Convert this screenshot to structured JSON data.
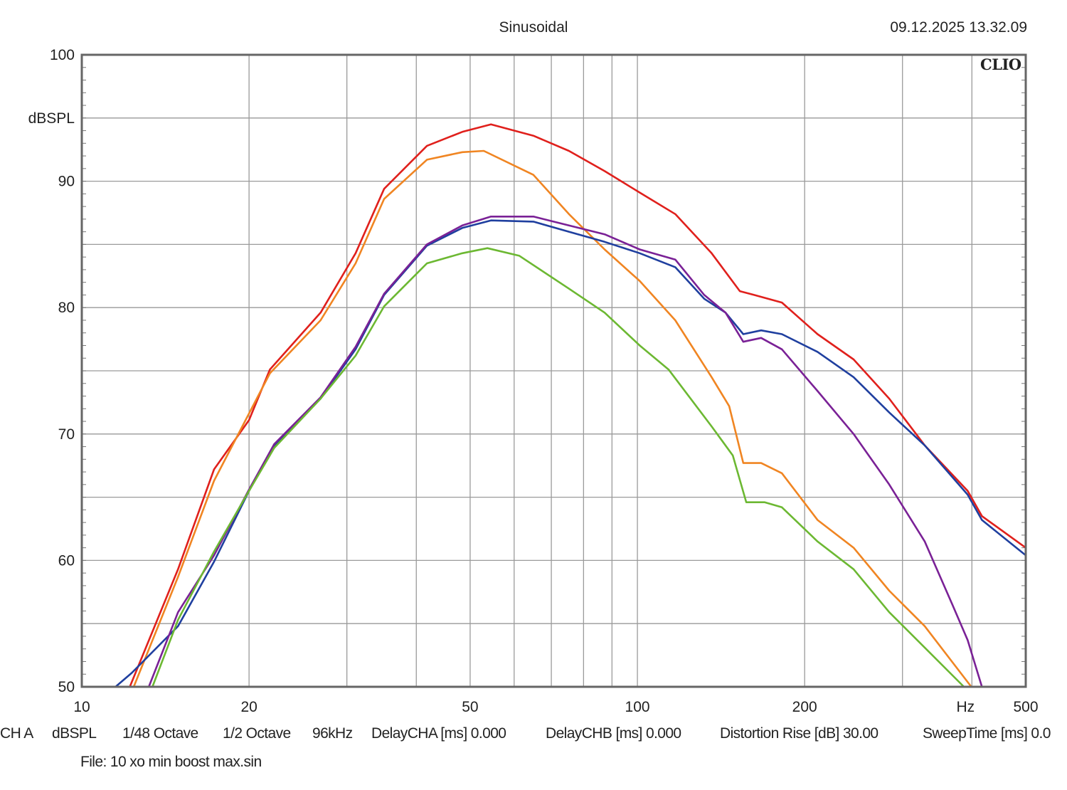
{
  "header": {
    "title": "Sinusoidal",
    "timestamp": "09.12.2025 13.32.09",
    "logo": "CLIO"
  },
  "footer": {
    "settings": [
      "CH A",
      "dBSPL",
      "1/48 Octave",
      "1/2 Octave",
      "96kHz",
      "DelayCHA [ms] 0.000",
      "DelayCHB [ms] 0.000",
      "Distortion Rise [dB] 30.00",
      "SweepTime [ms] 0.0"
    ],
    "file": "File: 10 xo min boost max.sin"
  },
  "chart_data": {
    "type": "line",
    "title": "Sinusoidal",
    "xlabel": "Hz",
    "ylabel": "dBSPL",
    "xscale": "log",
    "xlim": [
      10,
      500
    ],
    "ylim": [
      50,
      100
    ],
    "xticks": [
      10,
      20,
      50,
      100,
      200,
      500
    ],
    "yticks": [
      50,
      60,
      70,
      80,
      90,
      100
    ],
    "grid": true,
    "series": [
      {
        "color": "#e0201c",
        "points": [
          [
            12.2,
            50
          ],
          [
            14.9,
            59.3
          ],
          [
            17.3,
            67.2
          ],
          [
            20.0,
            71.1
          ],
          [
            21.8,
            75.1
          ],
          [
            26.9,
            79.6
          ],
          [
            31.1,
            84.3
          ],
          [
            35.0,
            89.4
          ],
          [
            41.8,
            92.8
          ],
          [
            48.4,
            93.9
          ],
          [
            54.5,
            94.5
          ],
          [
            65,
            93.6
          ],
          [
            75.3,
            92.4
          ],
          [
            87.3,
            90.8
          ],
          [
            101,
            89.1
          ],
          [
            117,
            87.4
          ],
          [
            136,
            84.3
          ],
          [
            152.9,
            81.3
          ],
          [
            162.2,
            81.0
          ],
          [
            182,
            80.4
          ],
          [
            211,
            77.9
          ],
          [
            245,
            75.9
          ],
          [
            284,
            72.8
          ],
          [
            329,
            69.1
          ],
          [
            393,
            65.5
          ],
          [
            417,
            63.5
          ],
          [
            500,
            61.0
          ]
        ]
      },
      {
        "color": "#f08522",
        "points": [
          [
            12.4,
            50
          ],
          [
            14.9,
            58.7
          ],
          [
            17.3,
            66.3
          ],
          [
            21.8,
            74.8
          ],
          [
            26.9,
            79.0
          ],
          [
            31.1,
            83.5
          ],
          [
            35.0,
            88.6
          ],
          [
            41.8,
            91.7
          ],
          [
            48.4,
            92.3
          ],
          [
            52.9,
            92.4
          ],
          [
            65,
            90.5
          ],
          [
            75.3,
            87.4
          ],
          [
            87.3,
            84.6
          ],
          [
            101,
            82.1
          ],
          [
            117,
            79.0
          ],
          [
            136,
            74.5
          ],
          [
            146.3,
            72.2
          ],
          [
            155.1,
            67.7
          ],
          [
            167.0,
            67.7
          ],
          [
            182,
            66.9
          ],
          [
            211,
            63.2
          ],
          [
            245,
            61.0
          ],
          [
            284,
            57.6
          ],
          [
            329,
            54.8
          ],
          [
            399,
            50
          ]
        ]
      },
      {
        "color": "#1f3f9f",
        "points": [
          [
            11.5,
            50
          ],
          [
            12.3,
            51.1
          ],
          [
            14.9,
            54.8
          ],
          [
            17.3,
            59.9
          ],
          [
            20.0,
            65.5
          ],
          [
            22.2,
            69.1
          ],
          [
            26.9,
            72.8
          ],
          [
            31.1,
            76.7
          ],
          [
            35.0,
            81.0
          ],
          [
            41.8,
            84.9
          ],
          [
            48.4,
            86.3
          ],
          [
            54.5,
            86.9
          ],
          [
            65,
            86.8
          ],
          [
            75.3,
            86.0
          ],
          [
            87.3,
            85.2
          ],
          [
            101,
            84.3
          ],
          [
            117,
            83.2
          ],
          [
            131.9,
            80.7
          ],
          [
            144.1,
            79.6
          ],
          [
            155.1,
            77.9
          ],
          [
            167.0,
            78.2
          ],
          [
            182,
            77.9
          ],
          [
            211,
            76.5
          ],
          [
            245,
            74.5
          ],
          [
            284,
            71.7
          ],
          [
            329,
            69.1
          ],
          [
            393,
            65.2
          ],
          [
            417,
            63.2
          ],
          [
            500,
            60.4
          ]
        ]
      },
      {
        "color": "#7a2196",
        "points": [
          [
            13.2,
            50
          ],
          [
            14.9,
            55.9
          ],
          [
            17.3,
            60.4
          ],
          [
            20.0,
            65.6
          ],
          [
            22.2,
            69.2
          ],
          [
            26.9,
            72.9
          ],
          [
            31.1,
            76.9
          ],
          [
            35.0,
            81.1
          ],
          [
            41.8,
            85.0
          ],
          [
            48.4,
            86.5
          ],
          [
            54.5,
            87.2
          ],
          [
            65,
            87.2
          ],
          [
            75.3,
            86.5
          ],
          [
            87.3,
            85.8
          ],
          [
            101,
            84.6
          ],
          [
            117,
            83.8
          ],
          [
            131.9,
            81.0
          ],
          [
            144.1,
            79.6
          ],
          [
            155.1,
            77.3
          ],
          [
            167.0,
            77.6
          ],
          [
            182,
            76.7
          ],
          [
            211,
            73.4
          ],
          [
            245,
            70.0
          ],
          [
            284,
            66.0
          ],
          [
            329,
            61.5
          ],
          [
            369,
            56.5
          ],
          [
            393,
            53.7
          ],
          [
            417,
            50
          ]
        ]
      },
      {
        "color": "#6cb832",
        "points": [
          [
            13.4,
            50
          ],
          [
            14.9,
            55.3
          ],
          [
            17.3,
            60.7
          ],
          [
            20.0,
            65.5
          ],
          [
            22.2,
            68.9
          ],
          [
            26.9,
            72.8
          ],
          [
            31.1,
            76.2
          ],
          [
            35.0,
            80.1
          ],
          [
            41.8,
            83.5
          ],
          [
            48.4,
            84.3
          ],
          [
            53.7,
            84.7
          ],
          [
            61.3,
            84.1
          ],
          [
            75.3,
            81.5
          ],
          [
            87.3,
            79.6
          ],
          [
            101,
            77.0
          ],
          [
            113.8,
            75.1
          ],
          [
            136,
            70.6
          ],
          [
            148.5,
            68.3
          ],
          [
            157,
            64.6
          ],
          [
            169.5,
            64.6
          ],
          [
            182,
            64.2
          ],
          [
            211,
            61.5
          ],
          [
            245,
            59.3
          ],
          [
            284,
            55.9
          ],
          [
            329,
            53.1
          ],
          [
            387,
            50
          ]
        ]
      }
    ]
  }
}
